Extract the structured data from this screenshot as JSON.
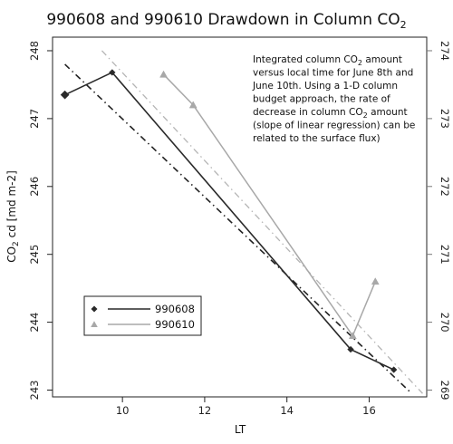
{
  "chart_data": {
    "type": "line",
    "title_main": "990608 and 990610 Drawdown in Column CO",
    "title_sub": "2",
    "xlabel": "LT",
    "ylabel_main": "CO",
    "ylabel_sub": "2",
    "ylabel_tail": " cd [md m-2]",
    "xlim": [
      8.3,
      17.4
    ],
    "ylim_left": [
      242.9,
      248.2
    ],
    "ylim_right": [
      268.9,
      274.2
    ],
    "x_ticks": [
      10,
      12,
      14,
      16
    ],
    "y_left_ticks": [
      243,
      244,
      245,
      246,
      247,
      248
    ],
    "y_right_ticks": [
      269,
      270,
      271,
      272,
      273,
      274
    ],
    "grid": false,
    "legend_placement": "bottom-left",
    "series": [
      {
        "name": "990608",
        "axis": "left",
        "marker": "diamond",
        "color": "#2a2a2a",
        "x": [
          8.6,
          9.75,
          15.55,
          16.6
        ],
        "y": [
          247.35,
          247.68,
          243.6,
          243.3
        ]
      },
      {
        "name": "990610",
        "axis": "right",
        "marker": "triangle",
        "color": "#a8a8a8",
        "x": [
          11.0,
          11.72,
          15.6,
          16.15
        ],
        "y": [
          273.65,
          273.2,
          269.8,
          270.6
        ]
      }
    ],
    "regression_lines": [
      {
        "series": "990608",
        "axis": "left",
        "style": "dash-dot",
        "color": "#222222",
        "x": [
          8.6,
          17.0
        ],
        "y": [
          247.8,
          242.97
        ]
      },
      {
        "series": "990610",
        "axis": "right",
        "style": "dash-dot",
        "color": "#b5b5b5",
        "x": [
          9.5,
          17.3
        ],
        "y": [
          274.0,
          268.95
        ]
      }
    ],
    "annotation": [
      [
        {
          "t": "Integrated column CO"
        },
        {
          "t": "2",
          "sub": true
        },
        {
          "t": " amount"
        }
      ],
      [
        {
          "t": "versus local time for June 8th and"
        }
      ],
      [
        {
          "t": "June 10th. Using a 1-D column"
        }
      ],
      [
        {
          "t": "budget approach, the rate of"
        }
      ],
      [
        {
          "t": "decrease in column CO"
        },
        {
          "t": "2",
          "sub": true
        },
        {
          "t": " amount"
        }
      ],
      [
        {
          "t": "(slope of linear regression) can be"
        }
      ],
      [
        {
          "t": "related to the surface flux)"
        }
      ]
    ]
  }
}
